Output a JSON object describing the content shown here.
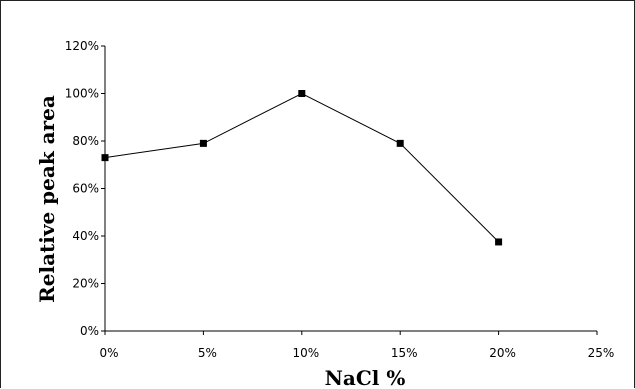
{
  "chart_data": {
    "type": "line",
    "title": "",
    "xlabel": "NaCl %",
    "ylabel": "Relative peak area",
    "x_ticks": [
      "0%",
      "5%",
      "10%",
      "15%",
      "20%",
      "25%"
    ],
    "y_ticks": [
      "0%",
      "20%",
      "40%",
      "60%",
      "80%",
      "100%",
      "120%"
    ],
    "xlim": [
      0,
      25
    ],
    "ylim": [
      0,
      120
    ],
    "grid": false,
    "legend": "none",
    "series": [
      {
        "x": [
          0,
          5,
          10,
          15,
          20
        ],
        "y": [
          73,
          79,
          100,
          79,
          37.5
        ],
        "color": "#000000",
        "marker": "square"
      }
    ]
  }
}
